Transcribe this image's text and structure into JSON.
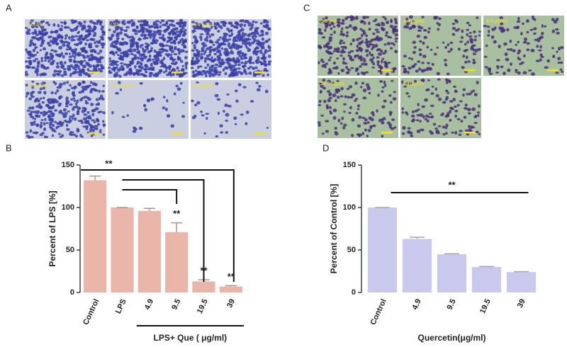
{
  "panels": {
    "a": "A",
    "b": "B",
    "c": "C",
    "d": "D"
  },
  "micrographs_a": [
    "Control",
    "LPS",
    "4.9 μg/mL",
    "9.5 μg/mL",
    "19.5 μg/mL",
    "39 μg/mL"
  ],
  "micrographs_c": [
    "Control",
    "4.9 μg/mL",
    "9.5 μg/mL",
    "19.5 μg/mL",
    "39 μg/mL"
  ],
  "chart_data": [
    {
      "type": "bar",
      "y_label": "Percent of LPS [%]",
      "x_label": "LPS+ Que ( μg/ml)",
      "categories": [
        "Control",
        "LPS",
        "4.9",
        "9.5",
        "19.5",
        "39"
      ],
      "values": [
        132,
        100,
        96,
        71,
        13,
        7
      ],
      "errors": [
        5,
        0,
        3,
        11,
        2,
        1
      ],
      "color": "#e9b5a9",
      "ylim": [
        0,
        150
      ],
      "yticks": [
        0,
        50,
        100,
        150
      ],
      "annotations": [
        "**",
        "**",
        "**",
        "**"
      ]
    },
    {
      "type": "bar",
      "y_label": "Percent of Control [%]",
      "x_label": "Quercetin(μg/ml)",
      "categories": [
        "Control",
        "4.9",
        "9.5",
        "19.5",
        "39"
      ],
      "values": [
        100,
        63,
        45,
        30,
        24
      ],
      "errors": [
        0,
        2,
        0.5,
        0.5,
        0.5
      ],
      "color": "#c9c9ee",
      "ylim": [
        0,
        150
      ],
      "yticks": [
        0,
        50,
        100,
        150
      ],
      "annotations": [
        "**"
      ]
    }
  ]
}
